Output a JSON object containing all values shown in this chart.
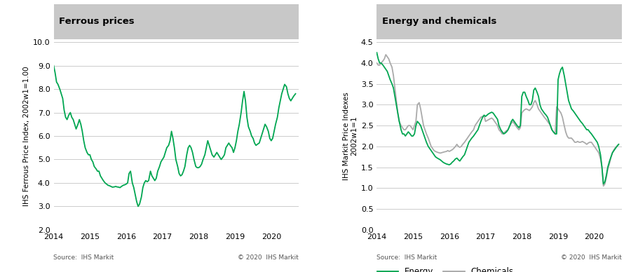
{
  "title_left": "Ferrous prices",
  "title_right": "Energy and chemicals",
  "ylabel_left": "IHS Ferrous Price Index, 2002w1=1.00",
  "ylabel_right": "IHS Markit Price Indexes\n2002w1=1",
  "source_text": "Source:  IHS Markit",
  "copyright_text": "© 2020  IHS Markit",
  "title_bg_color": "#c8c8c8",
  "fig_bg_color": "#ffffff",
  "plot_bg_color": "#ffffff",
  "grid_color": "#cccccc",
  "line_color_green": "#00a651",
  "line_color_gray": "#aaaaaa",
  "ferrous_ylim": [
    2.0,
    10.0
  ],
  "ferrous_yticks": [
    2.0,
    3.0,
    4.0,
    5.0,
    6.0,
    7.0,
    8.0,
    9.0,
    10.0
  ],
  "energy_ylim": [
    0.0,
    4.5
  ],
  "energy_yticks": [
    0.0,
    0.5,
    1.0,
    1.5,
    2.0,
    2.5,
    3.0,
    3.5,
    4.0,
    4.5
  ],
  "ferrous_x": [
    2014.0,
    2014.04,
    2014.08,
    2014.12,
    2014.17,
    2014.21,
    2014.25,
    2014.29,
    2014.33,
    2014.37,
    2014.42,
    2014.46,
    2014.5,
    2014.54,
    2014.58,
    2014.62,
    2014.67,
    2014.71,
    2014.75,
    2014.79,
    2014.83,
    2014.87,
    2014.92,
    2014.96,
    2015.0,
    2015.04,
    2015.08,
    2015.12,
    2015.17,
    2015.21,
    2015.25,
    2015.29,
    2015.33,
    2015.37,
    2015.42,
    2015.46,
    2015.5,
    2015.54,
    2015.58,
    2015.62,
    2015.67,
    2015.71,
    2015.75,
    2015.79,
    2015.83,
    2015.87,
    2015.92,
    2015.96,
    2016.0,
    2016.04,
    2016.08,
    2016.12,
    2016.17,
    2016.21,
    2016.25,
    2016.29,
    2016.33,
    2016.37,
    2016.42,
    2016.46,
    2016.5,
    2016.54,
    2016.58,
    2016.62,
    2016.67,
    2016.71,
    2016.75,
    2016.79,
    2016.83,
    2016.87,
    2016.92,
    2016.96,
    2017.0,
    2017.04,
    2017.08,
    2017.12,
    2017.17,
    2017.21,
    2017.25,
    2017.29,
    2017.33,
    2017.37,
    2017.42,
    2017.46,
    2017.5,
    2017.54,
    2017.58,
    2017.62,
    2017.67,
    2017.71,
    2017.75,
    2017.79,
    2017.83,
    2017.87,
    2017.92,
    2017.96,
    2018.0,
    2018.04,
    2018.08,
    2018.12,
    2018.17,
    2018.21,
    2018.25,
    2018.29,
    2018.33,
    2018.37,
    2018.42,
    2018.46,
    2018.5,
    2018.54,
    2018.58,
    2018.62,
    2018.67,
    2018.71,
    2018.75,
    2018.79,
    2018.83,
    2018.87,
    2018.92,
    2018.96,
    2019.0,
    2019.04,
    2019.08,
    2019.12,
    2019.17,
    2019.21,
    2019.25,
    2019.29,
    2019.33,
    2019.37,
    2019.42,
    2019.46,
    2019.5,
    2019.54,
    2019.58,
    2019.62,
    2019.67,
    2019.71,
    2019.75,
    2019.79,
    2019.83,
    2019.87,
    2019.92,
    2019.96,
    2020.0,
    2020.04,
    2020.08,
    2020.12,
    2020.17,
    2020.21,
    2020.25,
    2020.29,
    2020.33,
    2020.37,
    2020.42,
    2020.46,
    2020.5,
    2020.54,
    2020.58,
    2020.62,
    2020.67
  ],
  "ferrous_y": [
    9.0,
    8.7,
    8.3,
    8.2,
    8.0,
    7.8,
    7.6,
    7.1,
    6.8,
    6.7,
    6.9,
    7.0,
    6.8,
    6.7,
    6.5,
    6.3,
    6.5,
    6.7,
    6.5,
    6.2,
    5.8,
    5.5,
    5.3,
    5.2,
    5.2,
    5.0,
    4.9,
    4.7,
    4.6,
    4.5,
    4.5,
    4.3,
    4.2,
    4.1,
    4.0,
    3.95,
    3.9,
    3.88,
    3.85,
    3.82,
    3.83,
    3.85,
    3.83,
    3.82,
    3.8,
    3.85,
    3.9,
    3.92,
    3.95,
    4.0,
    4.4,
    4.5,
    4.0,
    3.8,
    3.5,
    3.2,
    3.0,
    3.1,
    3.4,
    3.8,
    4.0,
    4.1,
    4.05,
    4.1,
    4.5,
    4.3,
    4.2,
    4.1,
    4.2,
    4.5,
    4.7,
    4.9,
    5.0,
    5.1,
    5.3,
    5.5,
    5.6,
    5.8,
    6.2,
    5.9,
    5.5,
    5.0,
    4.7,
    4.4,
    4.3,
    4.35,
    4.5,
    4.7,
    5.2,
    5.5,
    5.6,
    5.5,
    5.3,
    5.0,
    4.7,
    4.65,
    4.65,
    4.7,
    4.8,
    5.0,
    5.2,
    5.5,
    5.8,
    5.6,
    5.4,
    5.2,
    5.1,
    5.2,
    5.3,
    5.2,
    5.1,
    5.0,
    5.1,
    5.2,
    5.5,
    5.6,
    5.7,
    5.6,
    5.5,
    5.3,
    5.5,
    5.8,
    6.2,
    6.5,
    7.0,
    7.5,
    7.9,
    7.5,
    6.8,
    6.4,
    6.2,
    6.0,
    5.9,
    5.7,
    5.6,
    5.65,
    5.7,
    5.9,
    6.1,
    6.3,
    6.5,
    6.4,
    6.2,
    5.9,
    5.8,
    5.9,
    6.2,
    6.5,
    6.8,
    7.2,
    7.5,
    7.8,
    8.0,
    8.2,
    8.1,
    7.8,
    7.6,
    7.5,
    7.6,
    7.7,
    7.8
  ],
  "energy_x": [
    2014.0,
    2014.04,
    2014.08,
    2014.12,
    2014.17,
    2014.21,
    2014.25,
    2014.29,
    2014.33,
    2014.37,
    2014.42,
    2014.46,
    2014.5,
    2014.54,
    2014.58,
    2014.62,
    2014.67,
    2014.71,
    2014.75,
    2014.79,
    2014.83,
    2014.87,
    2014.92,
    2014.96,
    2015.0,
    2015.04,
    2015.08,
    2015.12,
    2015.17,
    2015.21,
    2015.25,
    2015.29,
    2015.33,
    2015.37,
    2015.42,
    2015.46,
    2015.5,
    2015.54,
    2015.58,
    2015.62,
    2015.67,
    2015.71,
    2015.75,
    2015.79,
    2015.83,
    2015.87,
    2015.92,
    2015.96,
    2016.0,
    2016.04,
    2016.08,
    2016.12,
    2016.17,
    2016.21,
    2016.25,
    2016.29,
    2016.33,
    2016.37,
    2016.42,
    2016.46,
    2016.5,
    2016.54,
    2016.58,
    2016.62,
    2016.67,
    2016.71,
    2016.75,
    2016.79,
    2016.83,
    2016.87,
    2016.92,
    2016.96,
    2017.0,
    2017.04,
    2017.08,
    2017.12,
    2017.17,
    2017.21,
    2017.25,
    2017.29,
    2017.33,
    2017.37,
    2017.42,
    2017.46,
    2017.5,
    2017.54,
    2017.58,
    2017.62,
    2017.67,
    2017.71,
    2017.75,
    2017.79,
    2017.83,
    2017.87,
    2017.92,
    2017.96,
    2018.0,
    2018.04,
    2018.08,
    2018.12,
    2018.17,
    2018.21,
    2018.25,
    2018.29,
    2018.33,
    2018.37,
    2018.42,
    2018.46,
    2018.5,
    2018.54,
    2018.58,
    2018.62,
    2018.67,
    2018.71,
    2018.75,
    2018.79,
    2018.83,
    2018.87,
    2018.92,
    2018.96,
    2019.0,
    2019.04,
    2019.08,
    2019.12,
    2019.17,
    2019.21,
    2019.25,
    2019.29,
    2019.33,
    2019.37,
    2019.42,
    2019.46,
    2019.5,
    2019.54,
    2019.58,
    2019.62,
    2019.67,
    2019.71,
    2019.75,
    2019.79,
    2019.83,
    2019.87,
    2019.92,
    2019.96,
    2020.0,
    2020.04,
    2020.08,
    2020.12,
    2020.17,
    2020.21,
    2020.25,
    2020.29,
    2020.33,
    2020.37,
    2020.42,
    2020.46,
    2020.5,
    2020.54,
    2020.58,
    2020.62,
    2020.67
  ],
  "energy_y": [
    4.25,
    4.1,
    4.0,
    4.0,
    3.95,
    3.9,
    3.85,
    3.8,
    3.7,
    3.6,
    3.5,
    3.4,
    3.2,
    3.0,
    2.8,
    2.6,
    2.4,
    2.3,
    2.3,
    2.25,
    2.3,
    2.35,
    2.3,
    2.25,
    2.25,
    2.3,
    2.5,
    2.6,
    2.55,
    2.5,
    2.4,
    2.3,
    2.2,
    2.1,
    2.0,
    1.95,
    1.9,
    1.85,
    1.8,
    1.75,
    1.72,
    1.7,
    1.68,
    1.65,
    1.62,
    1.6,
    1.58,
    1.57,
    1.56,
    1.58,
    1.62,
    1.65,
    1.7,
    1.72,
    1.68,
    1.65,
    1.7,
    1.75,
    1.8,
    1.9,
    2.0,
    2.1,
    2.15,
    2.2,
    2.25,
    2.3,
    2.35,
    2.4,
    2.5,
    2.6,
    2.7,
    2.75,
    2.72,
    2.75,
    2.78,
    2.8,
    2.82,
    2.8,
    2.75,
    2.7,
    2.65,
    2.5,
    2.4,
    2.35,
    2.3,
    2.32,
    2.35,
    2.4,
    2.5,
    2.6,
    2.65,
    2.6,
    2.55,
    2.5,
    2.45,
    2.5,
    3.2,
    3.3,
    3.3,
    3.2,
    3.1,
    3.0,
    3.0,
    3.1,
    3.35,
    3.4,
    3.3,
    3.2,
    3.0,
    2.9,
    2.85,
    2.8,
    2.75,
    2.7,
    2.6,
    2.5,
    2.4,
    2.35,
    2.3,
    2.3,
    3.6,
    3.75,
    3.85,
    3.9,
    3.7,
    3.5,
    3.3,
    3.1,
    3.0,
    2.9,
    2.85,
    2.8,
    2.75,
    2.7,
    2.65,
    2.6,
    2.55,
    2.5,
    2.45,
    2.4,
    2.4,
    2.35,
    2.3,
    2.25,
    2.2,
    2.15,
    2.1,
    2.0,
    1.8,
    1.5,
    1.1,
    1.15,
    1.3,
    1.5,
    1.65,
    1.75,
    1.85,
    1.9,
    1.95,
    2.0,
    2.05
  ],
  "chem_y": [
    4.0,
    3.95,
    3.95,
    4.0,
    4.05,
    4.1,
    4.2,
    4.15,
    4.1,
    4.0,
    3.9,
    3.7,
    3.4,
    3.1,
    2.8,
    2.6,
    2.5,
    2.45,
    2.4,
    2.4,
    2.45,
    2.5,
    2.5,
    2.45,
    2.4,
    2.5,
    2.6,
    3.0,
    3.05,
    2.9,
    2.7,
    2.5,
    2.4,
    2.3,
    2.2,
    2.1,
    2.0,
    1.95,
    1.9,
    1.88,
    1.86,
    1.85,
    1.84,
    1.85,
    1.86,
    1.87,
    1.88,
    1.9,
    1.88,
    1.9,
    1.92,
    1.95,
    2.0,
    2.05,
    2.0,
    1.98,
    2.0,
    2.05,
    2.1,
    2.15,
    2.2,
    2.25,
    2.3,
    2.35,
    2.4,
    2.5,
    2.55,
    2.6,
    2.65,
    2.7,
    2.72,
    2.74,
    2.6,
    2.62,
    2.64,
    2.66,
    2.68,
    2.65,
    2.6,
    2.55,
    2.5,
    2.4,
    2.35,
    2.3,
    2.32,
    2.35,
    2.38,
    2.4,
    2.5,
    2.55,
    2.6,
    2.55,
    2.5,
    2.45,
    2.4,
    2.45,
    2.8,
    2.85,
    2.88,
    2.9,
    2.88,
    2.86,
    2.9,
    2.95,
    3.05,
    3.1,
    3.0,
    2.9,
    2.85,
    2.8,
    2.75,
    2.7,
    2.65,
    2.6,
    2.55,
    2.5,
    2.4,
    2.35,
    2.3,
    2.95,
    2.9,
    2.85,
    2.8,
    2.7,
    2.5,
    2.35,
    2.25,
    2.2,
    2.2,
    2.2,
    2.15,
    2.1,
    2.1,
    2.12,
    2.1,
    2.1,
    2.12,
    2.1,
    2.08,
    2.05,
    2.08,
    2.1,
    2.1,
    2.05,
    2.0,
    1.95,
    1.9,
    1.85,
    1.7,
    1.5,
    1.05,
    1.1,
    1.25,
    1.45,
    1.6,
    1.75,
    1.85,
    1.92,
    1.97,
    2.0,
    2.05
  ]
}
